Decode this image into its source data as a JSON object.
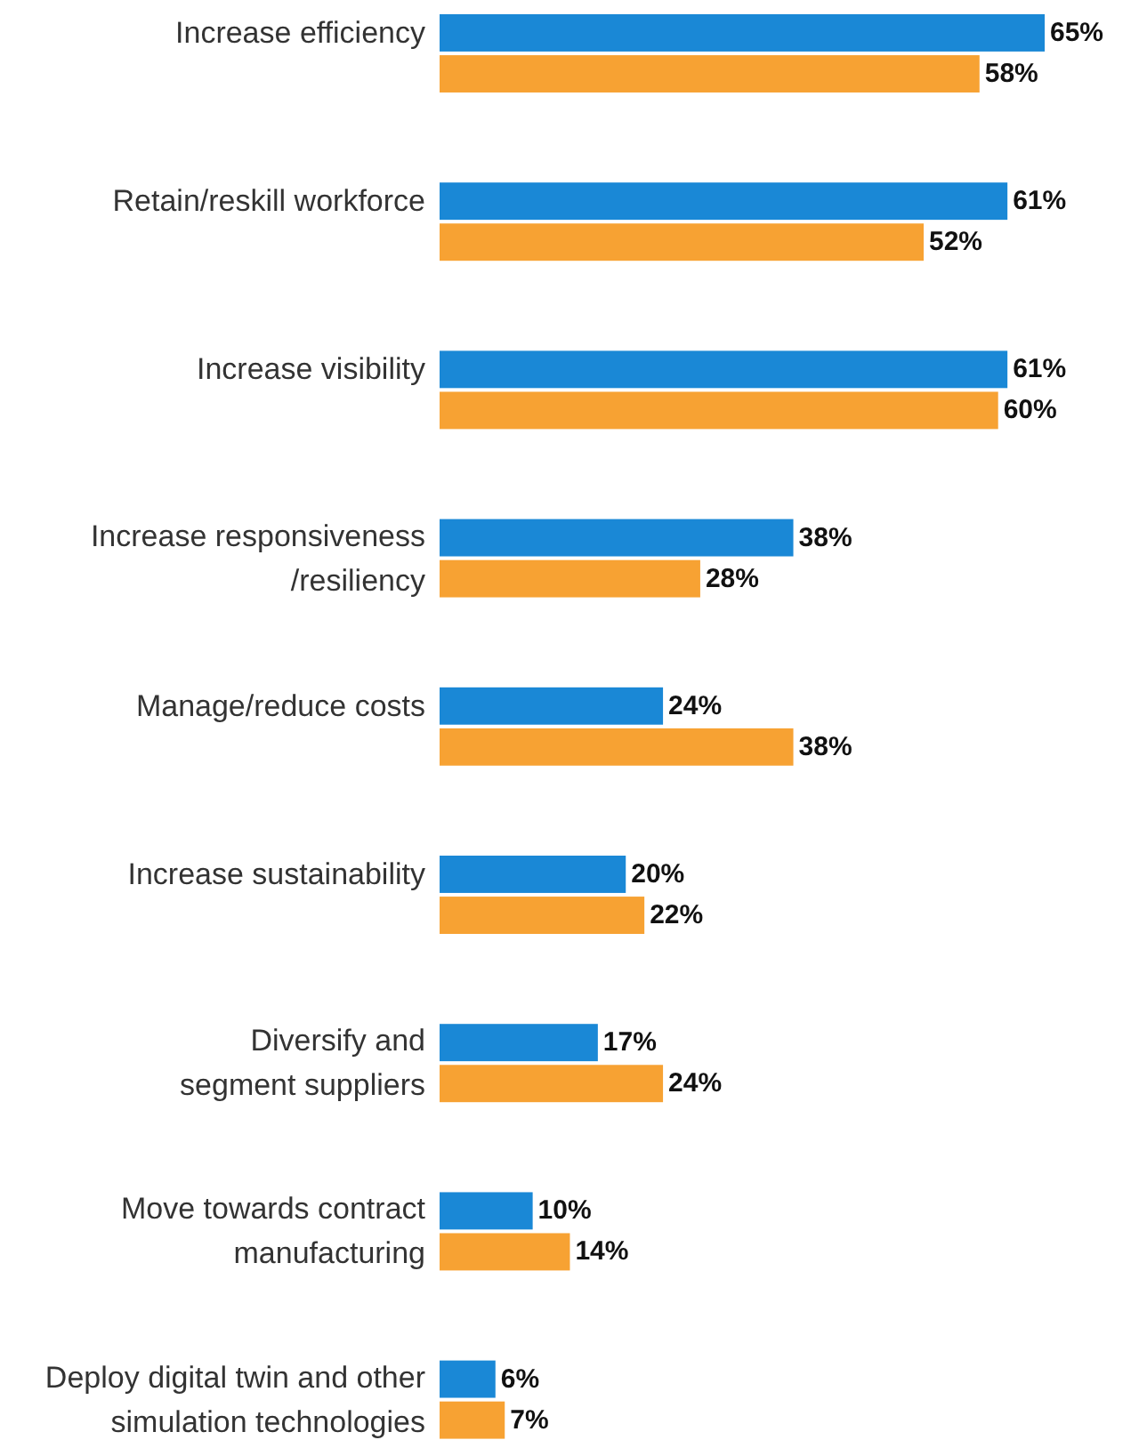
{
  "chart_data": {
    "type": "bar",
    "orientation": "horizontal",
    "categories": [
      "Increase efficiency",
      "Retain/reskill workforce",
      "Increase visibility",
      "Increase responsiveness\n/resiliency",
      "Manage/reduce costs",
      "Increase sustainability",
      "Diversify and\nsegment suppliers",
      "Move towards contract\nmanufacturing",
      "Deploy digital twin and other\nsimulation technologies"
    ],
    "series": [
      {
        "color": "#1a88d6",
        "values": [
          65,
          61,
          61,
          38,
          24,
          20,
          17,
          10,
          6
        ],
        "value_labels": [
          "65%",
          "61%",
          "61%",
          "38%",
          "24%",
          "20%",
          "17%",
          "10%",
          "6%"
        ]
      },
      {
        "color": "#f7a233",
        "values": [
          58,
          52,
          60,
          28,
          38,
          22,
          24,
          14,
          7
        ],
        "value_labels": [
          "58%",
          "52%",
          "60%",
          "28%",
          "38%",
          "22%",
          "24%",
          "14%",
          "7%"
        ]
      }
    ],
    "tick_labels": "y"
  }
}
